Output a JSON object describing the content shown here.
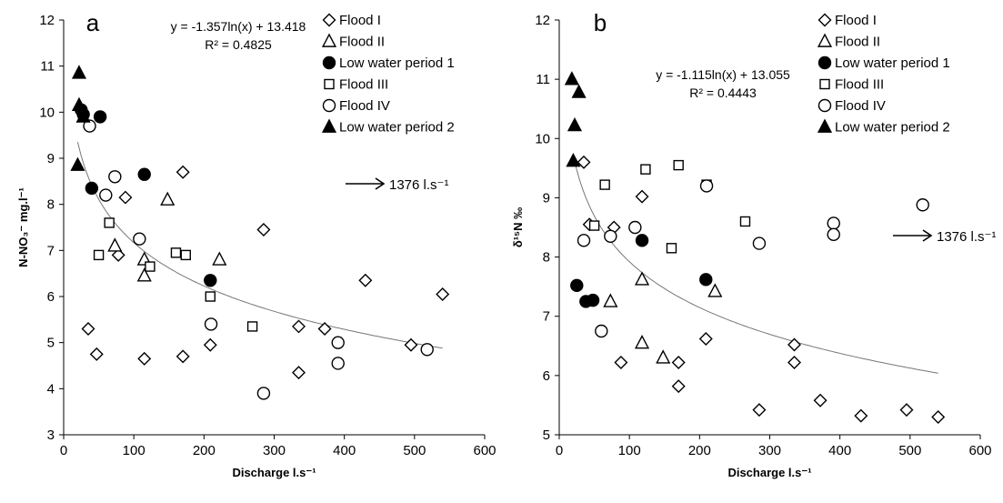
{
  "chart_data": [
    {
      "type": "scatter",
      "panel_label": "a",
      "xlabel": "Discharge l.s⁻¹",
      "ylabel": "N-NO₃⁻ mg.l⁻¹",
      "xlim": [
        0,
        600
      ],
      "ylim": [
        3,
        12
      ],
      "x_ticks": [
        0,
        100,
        200,
        300,
        400,
        500,
        600
      ],
      "y_ticks": [
        3,
        4,
        5,
        6,
        7,
        8,
        9,
        10,
        11,
        12
      ],
      "grid": false,
      "legend_position": "top-right",
      "equation": "y = -1.357ln(x) + 13.418",
      "r_squared": "R² = 0.4825",
      "trendline": {
        "a": -1.357,
        "b": 13.418,
        "xmin": 20,
        "xmax": 540
      },
      "annotation": {
        "text": "1376 l.s⁻¹",
        "arrow": "right",
        "value": 1376
      },
      "series": [
        {
          "name": "Flood I",
          "marker": "diamond-open",
          "points": [
            [
              35,
              5.3
            ],
            [
              47,
              4.75
            ],
            [
              78,
              6.9
            ],
            [
              88,
              8.15
            ],
            [
              115,
              4.65
            ],
            [
              170,
              8.7
            ],
            [
              170,
              4.7
            ],
            [
              209,
              4.95
            ],
            [
              285,
              7.45
            ],
            [
              335,
              5.35
            ],
            [
              335,
              4.35
            ],
            [
              372,
              5.3
            ],
            [
              430,
              6.35
            ],
            [
              495,
              4.95
            ],
            [
              540,
              6.05
            ]
          ]
        },
        {
          "name": "Flood II",
          "marker": "triangle-open",
          "points": [
            [
              73,
              7.1
            ],
            [
              115,
              6.8
            ],
            [
              115,
              6.45
            ],
            [
              148,
              8.1
            ],
            [
              222,
              6.8
            ]
          ]
        },
        {
          "name": "Low water period 1",
          "marker": "circle-filled",
          "points": [
            [
              25,
              10.05
            ],
            [
              28,
              9.95
            ],
            [
              40,
              8.35
            ],
            [
              52,
              9.9
            ],
            [
              115,
              8.65
            ],
            [
              209,
              6.35
            ]
          ]
        },
        {
          "name": "Flood III",
          "marker": "square-open",
          "points": [
            [
              50,
              6.9
            ],
            [
              65,
              7.6
            ],
            [
              123,
              6.65
            ],
            [
              160,
              6.95
            ],
            [
              174,
              6.9
            ],
            [
              209,
              6.0
            ],
            [
              269,
              5.35
            ]
          ]
        },
        {
          "name": "Flood IV",
          "marker": "circle-open",
          "points": [
            [
              37,
              9.7
            ],
            [
              60,
              8.2
            ],
            [
              73,
              8.6
            ],
            [
              108,
              7.25
            ],
            [
              210,
              5.4
            ],
            [
              391,
              5.0
            ],
            [
              391,
              4.55
            ],
            [
              285,
              3.9
            ],
            [
              518,
              4.85
            ]
          ]
        },
        {
          "name": "Low water period 2",
          "marker": "triangle-filled",
          "points": [
            [
              22,
              10.85
            ],
            [
              22,
              10.15
            ],
            [
              28,
              9.9
            ],
            [
              20,
              8.85
            ]
          ]
        }
      ]
    },
    {
      "type": "scatter",
      "panel_label": "b",
      "xlabel": "Discharge l.s⁻¹",
      "ylabel": "δ¹⁵N ‰",
      "xlim": [
        0,
        600
      ],
      "ylim": [
        5,
        12
      ],
      "x_ticks": [
        0,
        100,
        200,
        300,
        400,
        500,
        600
      ],
      "y_ticks": [
        5,
        6,
        7,
        8,
        9,
        10,
        11,
        12
      ],
      "grid": false,
      "legend_position": "top-right",
      "equation": "y = -1.115ln(x) + 13.055",
      "r_squared": "R² = 0.4443",
      "trendline": {
        "a": -1.115,
        "b": 13.055,
        "xmin": 20,
        "xmax": 540
      },
      "annotation": {
        "text": "1376 l.s⁻¹",
        "arrow": "right",
        "value": 1376
      },
      "series": [
        {
          "name": "Flood I",
          "marker": "diamond-open",
          "points": [
            [
              35,
              9.6
            ],
            [
              43,
              8.55
            ],
            [
              78,
              8.5
            ],
            [
              88,
              6.22
            ],
            [
              118,
              9.02
            ],
            [
              170,
              6.22
            ],
            [
              170,
              5.82
            ],
            [
              209,
              6.62
            ],
            [
              285,
              5.42
            ],
            [
              335,
              6.52
            ],
            [
              335,
              6.22
            ],
            [
              372,
              5.58
            ],
            [
              430,
              5.32
            ],
            [
              495,
              5.42
            ],
            [
              540,
              5.3
            ]
          ]
        },
        {
          "name": "Flood II",
          "marker": "triangle-open",
          "points": [
            [
              73,
              7.25
            ],
            [
              118,
              7.62
            ],
            [
              118,
              6.55
            ],
            [
              148,
              6.3
            ],
            [
              222,
              7.42
            ]
          ]
        },
        {
          "name": "Low water period 1",
          "marker": "circle-filled",
          "points": [
            [
              25,
              7.52
            ],
            [
              38,
              7.25
            ],
            [
              48,
              7.27
            ],
            [
              118,
              8.28
            ],
            [
              209,
              7.62
            ]
          ]
        },
        {
          "name": "Flood III",
          "marker": "square-open",
          "points": [
            [
              50,
              8.53
            ],
            [
              65,
              9.22
            ],
            [
              123,
              9.48
            ],
            [
              170,
              9.55
            ],
            [
              160,
              8.15
            ],
            [
              265,
              8.6
            ],
            [
              210,
              9.22
            ]
          ]
        },
        {
          "name": "Flood IV",
          "marker": "circle-open",
          "points": [
            [
              35,
              8.28
            ],
            [
              60,
              6.75
            ],
            [
              73,
              8.35
            ],
            [
              108,
              8.5
            ],
            [
              210,
              9.2
            ],
            [
              285,
              8.23
            ],
            [
              391,
              8.57
            ],
            [
              391,
              8.38
            ],
            [
              518,
              8.88
            ]
          ]
        },
        {
          "name": "Low water period 2",
          "marker": "triangle-filled",
          "points": [
            [
              18,
              11.0
            ],
            [
              28,
              10.78
            ],
            [
              22,
              10.22
            ],
            [
              20,
              9.62
            ]
          ]
        }
      ]
    }
  ]
}
